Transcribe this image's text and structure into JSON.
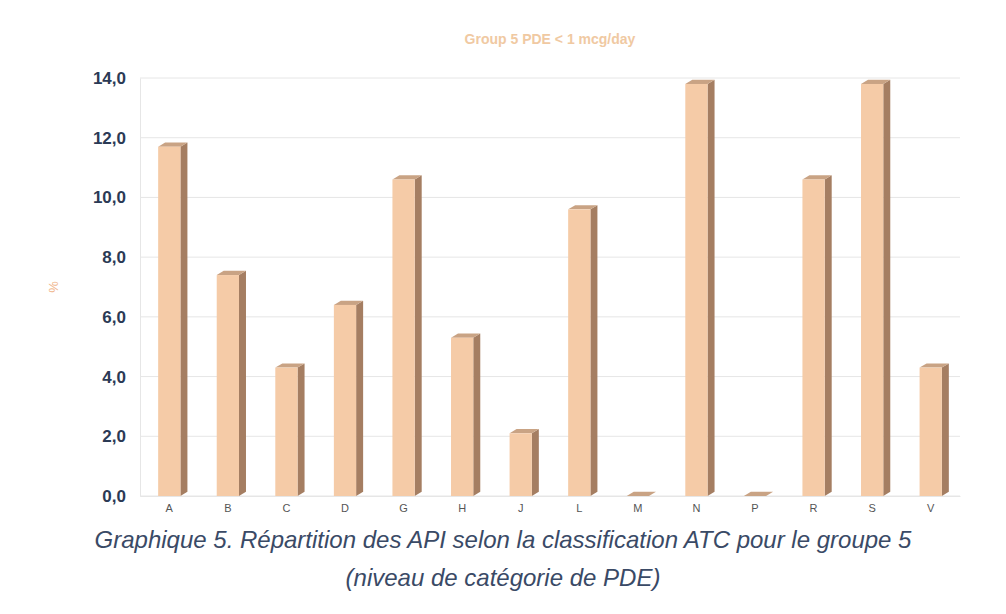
{
  "chart_data": {
    "type": "bar",
    "title": "Group 5 PDE < 1 mcg/day",
    "y_label": "%",
    "caption": [
      "Graphique 5. Répartition des API selon la classification ATC pour le groupe 5",
      "(niveau de catégorie de PDE)"
    ],
    "categories": [
      "A",
      "B",
      "C",
      "D",
      "G",
      "H",
      "J",
      "L",
      "M",
      "N",
      "P",
      "R",
      "S",
      "V"
    ],
    "values": [
      11.7,
      7.4,
      4.3,
      6.4,
      10.6,
      5.3,
      2.1,
      9.6,
      0,
      13.8,
      0,
      10.6,
      13.8,
      4.3
    ],
    "color": "#f5cba7",
    "ylim": [
      0,
      14
    ],
    "yticks": [
      {
        "value": 0,
        "label": "0,0"
      },
      {
        "value": 2,
        "label": "2,0"
      },
      {
        "value": 4,
        "label": "4,0"
      },
      {
        "value": 6,
        "label": "6,0"
      },
      {
        "value": 8,
        "label": "8,0"
      },
      {
        "value": 10,
        "label": "10,0"
      },
      {
        "value": 12,
        "label": "12,0"
      },
      {
        "value": 14,
        "label": "14,0"
      }
    ],
    "grid": true
  }
}
